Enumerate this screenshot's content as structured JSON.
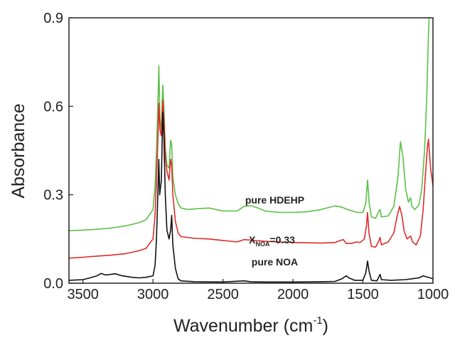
{
  "chart_data": {
    "type": "line",
    "title": "",
    "xlabel": {
      "main": "Wavenumber (cm",
      "sup": "-1",
      "close": ")"
    },
    "ylabel": "Absorbance",
    "xlim": [
      3600,
      1000
    ],
    "ylim": [
      0,
      0.9
    ],
    "x_reversed": true,
    "xticks": [
      {
        "value": 3500,
        "label": "3500"
      },
      {
        "value": 3000,
        "label": "3000"
      },
      {
        "value": 2500,
        "label": "2500"
      },
      {
        "value": 2000,
        "label": "2000"
      },
      {
        "value": 1500,
        "label": "1500"
      },
      {
        "value": 1000,
        "label": "1000"
      }
    ],
    "yticks": [
      {
        "value": 0.0,
        "label": "0.0"
      },
      {
        "value": 0.3,
        "label": "0.3"
      },
      {
        "value": 0.6,
        "label": "0.6"
      },
      {
        "value": 0.9,
        "label": "0.9"
      }
    ],
    "grid": false,
    "legend": "inline labels near curves",
    "series": [
      {
        "color": "#5cbf47",
        "label": {
          "text": "pure HDEHP",
          "x": 2130,
          "y": 0.27
        },
        "points": [
          [
            3600,
            0.178
          ],
          [
            3500,
            0.18
          ],
          [
            3400,
            0.183
          ],
          [
            3300,
            0.187
          ],
          [
            3200,
            0.194
          ],
          [
            3100,
            0.205
          ],
          [
            3050,
            0.215
          ],
          [
            3000,
            0.25
          ],
          [
            2985,
            0.33
          ],
          [
            2975,
            0.45
          ],
          [
            2965,
            0.6
          ],
          [
            2958,
            0.737
          ],
          [
            2950,
            0.56
          ],
          [
            2940,
            0.52
          ],
          [
            2930,
            0.672
          ],
          [
            2922,
            0.6
          ],
          [
            2912,
            0.46
          ],
          [
            2900,
            0.4
          ],
          [
            2885,
            0.39
          ],
          [
            2874,
            0.485
          ],
          [
            2866,
            0.47
          ],
          [
            2858,
            0.36
          ],
          [
            2840,
            0.3
          ],
          [
            2820,
            0.27
          ],
          [
            2800,
            0.255
          ],
          [
            2750,
            0.25
          ],
          [
            2700,
            0.252
          ],
          [
            2600,
            0.255
          ],
          [
            2500,
            0.245
          ],
          [
            2400,
            0.245
          ],
          [
            2350,
            0.26
          ],
          [
            2300,
            0.263
          ],
          [
            2250,
            0.255
          ],
          [
            2200,
            0.245
          ],
          [
            2100,
            0.24
          ],
          [
            2000,
            0.24
          ],
          [
            1900,
            0.242
          ],
          [
            1800,
            0.25
          ],
          [
            1700,
            0.262
          ],
          [
            1650,
            0.258
          ],
          [
            1600,
            0.248
          ],
          [
            1540,
            0.24
          ],
          [
            1500,
            0.24
          ],
          [
            1480,
            0.27
          ],
          [
            1467,
            0.35
          ],
          [
            1455,
            0.27
          ],
          [
            1440,
            0.225
          ],
          [
            1410,
            0.22
          ],
          [
            1390,
            0.24
          ],
          [
            1378,
            0.25
          ],
          [
            1368,
            0.225
          ],
          [
            1320,
            0.228
          ],
          [
            1280,
            0.26
          ],
          [
            1250,
            0.36
          ],
          [
            1232,
            0.48
          ],
          [
            1215,
            0.43
          ],
          [
            1195,
            0.32
          ],
          [
            1175,
            0.275
          ],
          [
            1160,
            0.29
          ],
          [
            1150,
            0.26
          ],
          [
            1130,
            0.25
          ],
          [
            1100,
            0.265
          ],
          [
            1080,
            0.32
          ],
          [
            1060,
            0.45
          ],
          [
            1045,
            0.62
          ],
          [
            1035,
            0.8
          ],
          [
            1028,
            0.9
          ]
        ]
      },
      {
        "color": "#e02a2a",
        "label": {
          "text": "X",
          "sub": "NOA",
          "suffix": "=0.33",
          "x": 2150,
          "y": 0.135
        },
        "points": [
          [
            3600,
            0.085
          ],
          [
            3500,
            0.088
          ],
          [
            3400,
            0.092
          ],
          [
            3300,
            0.095
          ],
          [
            3200,
            0.1
          ],
          [
            3100,
            0.11
          ],
          [
            3050,
            0.118
          ],
          [
            3000,
            0.15
          ],
          [
            2985,
            0.23
          ],
          [
            2975,
            0.35
          ],
          [
            2965,
            0.48
          ],
          [
            2958,
            0.61
          ],
          [
            2950,
            0.52
          ],
          [
            2940,
            0.5
          ],
          [
            2930,
            0.62
          ],
          [
            2922,
            0.56
          ],
          [
            2912,
            0.43
          ],
          [
            2900,
            0.38
          ],
          [
            2885,
            0.35
          ],
          [
            2874,
            0.42
          ],
          [
            2866,
            0.4
          ],
          [
            2858,
            0.3
          ],
          [
            2840,
            0.21
          ],
          [
            2820,
            0.17
          ],
          [
            2800,
            0.158
          ],
          [
            2700,
            0.152
          ],
          [
            2600,
            0.15
          ],
          [
            2500,
            0.145
          ],
          [
            2400,
            0.14
          ],
          [
            2350,
            0.148
          ],
          [
            2300,
            0.146
          ],
          [
            2200,
            0.142
          ],
          [
            2100,
            0.14
          ],
          [
            2000,
            0.138
          ],
          [
            1900,
            0.137
          ],
          [
            1800,
            0.136
          ],
          [
            1700,
            0.138
          ],
          [
            1660,
            0.145
          ],
          [
            1640,
            0.148
          ],
          [
            1620,
            0.135
          ],
          [
            1580,
            0.135
          ],
          [
            1550,
            0.14
          ],
          [
            1520,
            0.138
          ],
          [
            1490,
            0.15
          ],
          [
            1475,
            0.195
          ],
          [
            1467,
            0.24
          ],
          [
            1457,
            0.17
          ],
          [
            1440,
            0.125
          ],
          [
            1410,
            0.122
          ],
          [
            1390,
            0.14
          ],
          [
            1378,
            0.155
          ],
          [
            1368,
            0.13
          ],
          [
            1320,
            0.14
          ],
          [
            1280,
            0.17
          ],
          [
            1255,
            0.23
          ],
          [
            1238,
            0.26
          ],
          [
            1222,
            0.23
          ],
          [
            1205,
            0.175
          ],
          [
            1185,
            0.15
          ],
          [
            1160,
            0.16
          ],
          [
            1145,
            0.14
          ],
          [
            1120,
            0.13
          ],
          [
            1090,
            0.16
          ],
          [
            1070,
            0.25
          ],
          [
            1055,
            0.36
          ],
          [
            1040,
            0.46
          ],
          [
            1032,
            0.488
          ],
          [
            1025,
            0.44
          ],
          [
            1015,
            0.38
          ],
          [
            1008,
            0.36
          ],
          [
            1000,
            0.33
          ]
        ]
      },
      {
        "color": "#111111",
        "label": {
          "text": "pure NOA",
          "x": 2130,
          "y": 0.06
        },
        "points": [
          [
            3600,
            0.01
          ],
          [
            3500,
            0.012
          ],
          [
            3450,
            0.018
          ],
          [
            3400,
            0.025
          ],
          [
            3370,
            0.033
          ],
          [
            3340,
            0.028
          ],
          [
            3300,
            0.03
          ],
          [
            3270,
            0.032
          ],
          [
            3220,
            0.025
          ],
          [
            3150,
            0.02
          ],
          [
            3100,
            0.018
          ],
          [
            3050,
            0.02
          ],
          [
            3000,
            0.025
          ],
          [
            2985,
            0.06
          ],
          [
            2975,
            0.15
          ],
          [
            2965,
            0.3
          ],
          [
            2958,
            0.42
          ],
          [
            2952,
            0.3
          ],
          [
            2940,
            0.35
          ],
          [
            2930,
            0.58
          ],
          [
            2922,
            0.5
          ],
          [
            2912,
            0.3
          ],
          [
            2900,
            0.18
          ],
          [
            2885,
            0.15
          ],
          [
            2874,
            0.18
          ],
          [
            2866,
            0.23
          ],
          [
            2858,
            0.13
          ],
          [
            2840,
            0.05
          ],
          [
            2820,
            0.015
          ],
          [
            2800,
            0.008
          ],
          [
            2700,
            0.005
          ],
          [
            2500,
            0.004
          ],
          [
            2350,
            0.008
          ],
          [
            2300,
            0.005
          ],
          [
            2200,
            0.004
          ],
          [
            2000,
            0.004
          ],
          [
            1800,
            0.005
          ],
          [
            1700,
            0.006
          ],
          [
            1650,
            0.015
          ],
          [
            1620,
            0.025
          ],
          [
            1600,
            0.018
          ],
          [
            1560,
            0.01
          ],
          [
            1500,
            0.01
          ],
          [
            1480,
            0.035
          ],
          [
            1467,
            0.075
          ],
          [
            1456,
            0.04
          ],
          [
            1440,
            0.01
          ],
          [
            1400,
            0.008
          ],
          [
            1390,
            0.018
          ],
          [
            1378,
            0.03
          ],
          [
            1368,
            0.012
          ],
          [
            1300,
            0.01
          ],
          [
            1200,
            0.012
          ],
          [
            1150,
            0.015
          ],
          [
            1100,
            0.018
          ],
          [
            1070,
            0.025
          ],
          [
            1050,
            0.022
          ],
          [
            1020,
            0.018
          ],
          [
            1000,
            0.015
          ]
        ]
      }
    ]
  }
}
